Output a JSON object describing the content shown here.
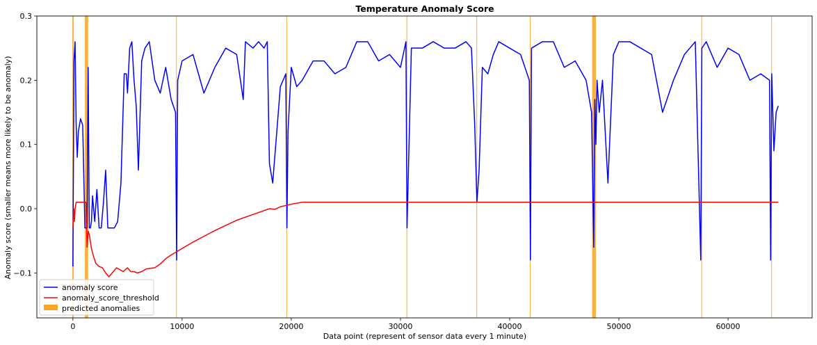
{
  "chart_data": {
    "type": "line",
    "title": "Temperature Anomaly Score",
    "xlabel": "Data point (represent of sensor data every 1 minute)",
    "ylabel": "Anomaly score (smaller means more likely to be anomaly)",
    "xlim": [
      -3300,
      67700
    ],
    "ylim": [
      -0.17,
      0.3
    ],
    "xticks": [
      0,
      10000,
      20000,
      30000,
      40000,
      50000,
      60000
    ],
    "yticks": [
      -0.1,
      0.0,
      0.1,
      0.2,
      0.3
    ],
    "xtick_labels": [
      "0",
      "10000",
      "20000",
      "30000",
      "40000",
      "50000",
      "60000"
    ],
    "ytick_labels": [
      "−0.1",
      "0.0",
      "0.1",
      "0.2",
      "0.3"
    ],
    "grid": false,
    "legend_position": "lower-left",
    "series": [
      {
        "name": "anomaly score",
        "color": "#0000ff",
        "x": [
          0,
          100,
          200,
          300,
          400,
          500,
          700,
          900,
          1100,
          1200,
          1300,
          1400,
          1500,
          1600,
          1700,
          1800,
          2000,
          2200,
          2400,
          2600,
          2800,
          3000,
          3200,
          3500,
          3800,
          4100,
          4400,
          4700,
          4900,
          5000,
          5200,
          5400,
          5600,
          5800,
          6000,
          6300,
          6600,
          7000,
          7500,
          8000,
          8500,
          9000,
          9400,
          9500,
          9600,
          10000,
          11000,
          12000,
          13000,
          14000,
          15000,
          15600,
          15800,
          16500,
          17000,
          17500,
          17800,
          18000,
          18300,
          19000,
          19500,
          19600,
          19700,
          20000,
          20500,
          21000,
          22000,
          23000,
          24000,
          25000,
          26000,
          27000,
          28000,
          29000,
          30000,
          30500,
          30600,
          31000,
          32000,
          33000,
          34000,
          35000,
          36000,
          36500,
          36800,
          37000,
          37200,
          37500,
          38000,
          38500,
          39000,
          40000,
          41000,
          41800,
          41900,
          42000,
          43000,
          44000,
          45000,
          46000,
          47000,
          47500,
          47700,
          47800,
          47900,
          48000,
          48200,
          48500,
          49000,
          49500,
          50000,
          51000,
          52000,
          53000,
          54000,
          55000,
          56000,
          57000,
          57500,
          57600,
          58000,
          59000,
          60000,
          61000,
          62000,
          63000,
          63800,
          63900,
          64000,
          64200,
          64400,
          64600
        ],
        "y": [
          -0.09,
          0.23,
          0.26,
          0.13,
          0.08,
          0.12,
          0.14,
          0.13,
          -0.03,
          -0.03,
          -0.03,
          0.22,
          -0.03,
          -0.03,
          -0.02,
          0.02,
          -0.02,
          0.03,
          -0.03,
          -0.03,
          0.01,
          0.06,
          -0.03,
          -0.03,
          -0.03,
          -0.02,
          0.04,
          0.21,
          0.21,
          0.18,
          0.25,
          0.26,
          0.2,
          0.16,
          0.06,
          0.23,
          0.25,
          0.26,
          0.2,
          0.18,
          0.22,
          0.17,
          0.15,
          -0.08,
          0.2,
          0.23,
          0.24,
          0.18,
          0.22,
          0.25,
          0.24,
          0.17,
          0.26,
          0.25,
          0.26,
          0.25,
          0.26,
          0.07,
          0.04,
          0.19,
          0.21,
          -0.03,
          0.12,
          0.22,
          0.19,
          0.2,
          0.23,
          0.23,
          0.21,
          0.22,
          0.26,
          0.26,
          0.23,
          0.24,
          0.22,
          0.26,
          -0.03,
          0.25,
          0.25,
          0.26,
          0.25,
          0.25,
          0.26,
          0.25,
          0.13,
          0.01,
          0.06,
          0.22,
          0.21,
          0.24,
          0.26,
          0.25,
          0.24,
          0.2,
          -0.08,
          0.25,
          0.26,
          0.26,
          0.22,
          0.23,
          0.2,
          0.15,
          -0.06,
          0.17,
          0.1,
          0.2,
          0.15,
          0.2,
          0.04,
          0.24,
          0.26,
          0.26,
          0.25,
          0.24,
          0.15,
          0.2,
          0.24,
          0.26,
          -0.08,
          0.25,
          0.26,
          0.22,
          0.25,
          0.24,
          0.2,
          0.21,
          0.2,
          -0.08,
          0.21,
          0.09,
          0.15,
          0.16
        ]
      },
      {
        "name": "anomaly_score_threshold",
        "color": "#ff0000",
        "x": [
          0,
          80,
          150,
          200,
          300,
          400,
          800,
          1000,
          1200,
          1300,
          1400,
          1500,
          1700,
          1900,
          2100,
          2400,
          2700,
          3000,
          3300,
          3600,
          4000,
          4300,
          4600,
          5000,
          5300,
          5600,
          5900,
          6300,
          6700,
          7000,
          7500,
          8000,
          8500,
          9000,
          10000,
          11000,
          12000,
          13000,
          14000,
          15000,
          16000,
          17000,
          18000,
          18500,
          19000,
          20000,
          21000,
          30000,
          40000,
          50000,
          60000,
          64600
        ],
        "y": [
          -0.03,
          0.0,
          -0.02,
          0.0,
          0.01,
          0.01,
          0.01,
          0.01,
          0.01,
          -0.06,
          -0.035,
          -0.04,
          -0.062,
          -0.075,
          -0.085,
          -0.09,
          -0.092,
          -0.1,
          -0.106,
          -0.1,
          -0.092,
          -0.095,
          -0.098,
          -0.092,
          -0.098,
          -0.098,
          -0.1,
          -0.098,
          -0.094,
          -0.093,
          -0.092,
          -0.086,
          -0.078,
          -0.072,
          -0.062,
          -0.052,
          -0.043,
          -0.034,
          -0.026,
          -0.018,
          -0.012,
          -0.006,
          0.0,
          -0.001,
          0.003,
          0.007,
          0.01,
          0.01,
          0.01,
          0.01,
          0.01,
          0.01
        ]
      }
    ],
    "anomaly_spans": {
      "name": "predicted anomalies",
      "color": "#f5a623",
      "ranges": [
        [
          -50,
          80
        ],
        [
          1100,
          1400
        ],
        [
          9450,
          9520
        ],
        [
          19550,
          19620
        ],
        [
          30550,
          30620
        ],
        [
          36950,
          37020
        ],
        [
          41850,
          41920
        ],
        [
          47550,
          47900
        ],
        [
          57550,
          57620
        ],
        [
          63950,
          64020
        ]
      ]
    }
  }
}
